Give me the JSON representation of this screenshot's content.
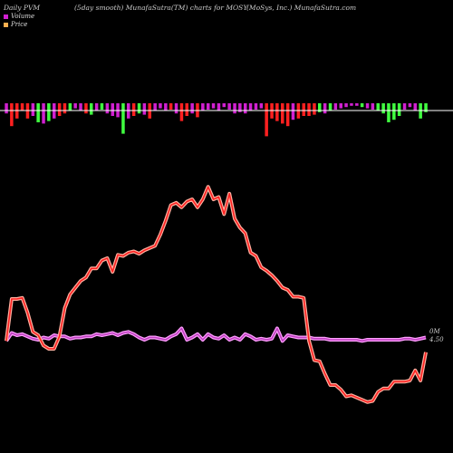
{
  "header": {
    "left": "Daily PVM",
    "center": "(5day smooth) MunafaSutra(TM) charts for MOSY",
    "right": "(MoSys, Inc.) MunafaSutra.com"
  },
  "legend": [
    {
      "label": "Volume",
      "color": "#d020d0"
    },
    {
      "label": "Price",
      "color": "#ffb050"
    }
  ],
  "end_labels": {
    "volume": "0M",
    "price": "4.50"
  },
  "colors": {
    "background": "#000000",
    "price_line": "#ff2020",
    "price_glow": "#ffb0a0",
    "volume_line": "#c040c0",
    "volume_glow": "#ffa0ff",
    "bar_up": "#40ff40",
    "bar_down": "#ff2020",
    "bar_neutral": "#d020d0",
    "baseline": "#ffffff"
  },
  "chart_data": {
    "type": "line",
    "x": [
      1,
      2,
      3,
      4,
      5,
      6,
      7,
      8,
      9,
      10,
      11,
      12,
      13,
      14,
      15,
      16,
      17,
      18,
      19,
      20,
      21,
      22,
      23,
      24,
      25,
      26,
      27,
      28,
      29,
      30,
      31,
      32,
      33,
      34,
      35,
      36,
      37,
      38,
      39,
      40,
      41,
      42,
      43,
      44,
      45,
      46,
      47,
      48,
      49,
      50,
      51,
      52,
      53,
      54,
      55,
      56,
      57,
      58,
      59,
      60,
      61,
      62,
      63,
      64,
      65,
      66,
      67,
      68,
      69,
      70,
      71,
      72,
      73,
      74,
      75,
      76,
      77,
      78,
      79,
      80
    ],
    "series": [
      {
        "name": "Price",
        "values": [
          5.5,
          9.2,
          9.2,
          9.3,
          8.0,
          6.3,
          6.0,
          5.1,
          4.8,
          4.8,
          5.9,
          8.4,
          9.6,
          10.2,
          10.8,
          11.1,
          11.9,
          11.9,
          12.6,
          12.8,
          11.6,
          13.1,
          13.0,
          13.3,
          13.4,
          13.2,
          13.5,
          13.7,
          13.9,
          14.9,
          16.1,
          17.5,
          17.7,
          17.3,
          17.8,
          18.0,
          17.3,
          18.0,
          19.1,
          18.0,
          18.2,
          16.7,
          18.5,
          16.3,
          15.5,
          15.0,
          13.3,
          13.0,
          12.0,
          11.7,
          11.3,
          10.8,
          10.2,
          10.0,
          9.4,
          9.4,
          9.3,
          5.5,
          3.8,
          3.7,
          2.6,
          1.6,
          1.6,
          1.2,
          0.6,
          0.7,
          0.5,
          0.3,
          0.1,
          0.2,
          1.0,
          1.3,
          1.3,
          1.9,
          1.9,
          1.9,
          2.0,
          2.9,
          2.0,
          4.5
        ]
      },
      {
        "name": "Volume",
        "values": [
          5.5,
          6.2,
          6.0,
          6.1,
          5.9,
          5.7,
          5.6,
          5.8,
          5.7,
          6.0,
          5.9,
          5.9,
          5.7,
          5.8,
          5.8,
          5.9,
          5.9,
          6.1,
          6.0,
          6.1,
          6.2,
          6.0,
          6.2,
          6.3,
          6.1,
          5.8,
          5.6,
          5.8,
          5.8,
          5.7,
          5.6,
          5.9,
          6.1,
          6.6,
          5.6,
          5.8,
          6.1,
          5.6,
          6.1,
          5.8,
          5.7,
          6.0,
          5.6,
          5.8,
          5.6,
          6.1,
          5.9,
          5.6,
          5.7,
          5.6,
          5.7,
          6.6,
          5.5,
          6.0,
          5.9,
          5.8,
          5.8,
          5.8,
          5.7,
          5.7,
          5.7,
          5.6,
          5.6,
          5.6,
          5.6,
          5.6,
          5.6,
          5.5,
          5.6,
          5.6,
          5.6,
          5.6,
          5.6,
          5.6,
          5.6,
          5.7,
          5.7,
          5.6,
          5.7,
          5.8
        ]
      },
      {
        "name": "PVM",
        "type": "bar",
        "values": [
          -0.8,
          -1.8,
          -1.2,
          -0.6,
          -1.2,
          -1.0,
          -1.5,
          -1.6,
          -1.4,
          -1.2,
          -1.0,
          -0.8,
          -0.6,
          -0.4,
          -0.6,
          -0.8,
          -0.9,
          -0.6,
          -0.5,
          -0.8,
          -1.0,
          -1.1,
          -2.4,
          -1.2,
          -1.0,
          -0.8,
          -0.9,
          -1.2,
          -0.6,
          -0.4,
          -0.6,
          -0.5,
          -0.8,
          -1.4,
          -1.0,
          -0.8,
          -1.1,
          -0.6,
          -0.5,
          -0.4,
          -0.6,
          -0.3,
          -0.5,
          -0.8,
          -0.7,
          -0.8,
          -0.6,
          -0.5,
          -0.4,
          -2.6,
          -1.2,
          -1.4,
          -1.6,
          -1.8,
          -1.3,
          -1.2,
          -1.0,
          -1.0,
          -0.9,
          -0.7,
          -0.8,
          -0.6,
          -0.5,
          -0.4,
          -0.3,
          -0.2,
          -0.2,
          -0.3,
          -0.4,
          -0.5,
          -0.6,
          -0.8,
          -1.5,
          -1.3,
          -1.0,
          -0.5,
          -0.3,
          -0.6,
          -1.2,
          -0.7
        ],
        "colors": [
          "neutral",
          "down",
          "down",
          "down",
          "down",
          "neutral",
          "up",
          "neutral",
          "up",
          "neutral",
          "down",
          "down",
          "up",
          "neutral",
          "neutral",
          "down",
          "up",
          "neutral",
          "up",
          "neutral",
          "neutral",
          "neutral",
          "up",
          "neutral",
          "down",
          "up",
          "neutral",
          "down",
          "neutral",
          "neutral",
          "neutral",
          "down",
          "neutral",
          "down",
          "down",
          "neutral",
          "down",
          "neutral",
          "neutral",
          "neutral",
          "neutral",
          "neutral",
          "neutral",
          "neutral",
          "neutral",
          "neutral",
          "neutral",
          "neutral",
          "neutral",
          "down",
          "down",
          "down",
          "down",
          "down",
          "neutral",
          "down",
          "down",
          "down",
          "down",
          "up",
          "neutral",
          "up",
          "neutral",
          "neutral",
          "neutral",
          "neutral",
          "neutral",
          "up",
          "neutral",
          "neutral",
          "up",
          "up",
          "up",
          "up",
          "up",
          "neutral",
          "neutral",
          "neutral",
          "up",
          "up"
        ]
      }
    ],
    "grid": false,
    "legend_position": "top-left"
  }
}
